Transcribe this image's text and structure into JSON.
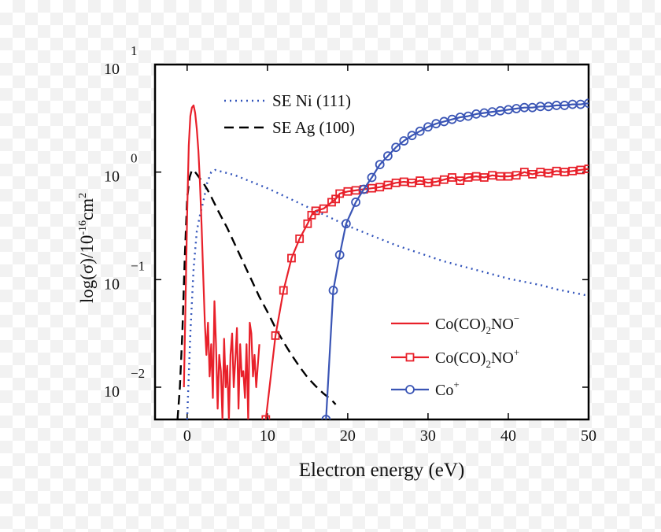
{
  "chart_data": {
    "type": "line",
    "xlabel": "Electron energy (eV)",
    "ylabel": "log(σ)/10",
    "ylabel_sup": "-16",
    "ylabel_unit": "cm",
    "ylabel_unit_sup": "2",
    "xlim": [
      -4,
      50
    ],
    "ylim": [
      -2.3,
      1.0
    ],
    "x_ticks": [
      {
        "value": 0,
        "label": "0"
      },
      {
        "value": 10,
        "label": "10"
      },
      {
        "value": 20,
        "label": "20"
      },
      {
        "value": 30,
        "label": "30"
      },
      {
        "value": 40,
        "label": "40"
      },
      {
        "value": 50,
        "label": "50"
      }
    ],
    "y_ticks": [
      {
        "value": 1,
        "base": "10",
        "exp": "1"
      },
      {
        "value": 0,
        "base": "10",
        "exp": "0"
      },
      {
        "value": -1,
        "base": "10",
        "exp": "−1"
      },
      {
        "value": -2,
        "base": "10",
        "exp": "−2"
      }
    ],
    "series": [
      {
        "name": "SE Ni (111)",
        "color": "#3355bb",
        "dash": "2,5",
        "marker": "none",
        "x": [
          0,
          0.4,
          0.8,
          1.2,
          1.6,
          2,
          2.5,
          3,
          3.5,
          4,
          5,
          6,
          7,
          8,
          9,
          10,
          12,
          14,
          16,
          18,
          20,
          22,
          24,
          26,
          28,
          30,
          32,
          34,
          36,
          38,
          40,
          42,
          44,
          46,
          48,
          50
        ],
        "y": [
          -2.3,
          -1.5,
          -0.9,
          -0.55,
          -0.4,
          -0.28,
          -0.1,
          0.0,
          0.02,
          0.01,
          -0.01,
          -0.03,
          -0.06,
          -0.09,
          -0.12,
          -0.15,
          -0.22,
          -0.29,
          -0.36,
          -0.43,
          -0.5,
          -0.56,
          -0.62,
          -0.68,
          -0.73,
          -0.78,
          -0.83,
          -0.87,
          -0.91,
          -0.95,
          -0.99,
          -1.02,
          -1.05,
          -1.09,
          -1.12,
          -1.15
        ]
      },
      {
        "name": "SE Ag (100)",
        "color": "#000000",
        "dash": "12,7",
        "marker": "none",
        "x": [
          -1.2,
          -0.9,
          -0.6,
          -0.3,
          0,
          0.3,
          0.6,
          0.9,
          1.2,
          1.5,
          2,
          2.5,
          3,
          4,
          5,
          6,
          7,
          8,
          9,
          10,
          11,
          12,
          13,
          14,
          15,
          16,
          17,
          17.5,
          18,
          18.5
        ],
        "y": [
          -2.3,
          -2.0,
          -1.5,
          -0.8,
          -0.25,
          -0.05,
          0.02,
          0.01,
          -0.02,
          -0.05,
          -0.1,
          -0.16,
          -0.23,
          -0.38,
          -0.52,
          -0.68,
          -0.84,
          -1.0,
          -1.16,
          -1.3,
          -1.45,
          -1.58,
          -1.7,
          -1.81,
          -1.91,
          -1.99,
          -2.06,
          -2.09,
          -2.12,
          -2.16
        ]
      },
      {
        "name": "Co(CO)",
        "legend_sub": "2",
        "legend_tail": "NO",
        "legend_sup": "−",
        "color": "#e8202a",
        "dash": "",
        "marker": "none",
        "x": [
          -0.4,
          -0.2,
          0,
          0.2,
          0.4,
          0.6,
          0.8,
          1.0,
          1.2,
          1.4,
          1.6,
          1.8,
          2.0,
          2.2,
          2.4,
          2.6,
          2.8,
          3.0,
          3.2,
          3.4,
          3.6,
          3.8,
          4.0,
          4.2,
          4.4,
          4.6,
          4.8,
          5.0,
          5.2,
          5.4,
          5.6,
          5.8,
          6.0,
          6.2,
          6.4,
          6.6,
          6.8,
          7.0,
          7.2,
          7.4,
          7.6,
          7.8,
          8.0,
          8.2,
          8.4,
          8.6,
          8.8,
          9.0
        ],
        "y": [
          -2.0,
          -1.2,
          -0.4,
          0.25,
          0.52,
          0.6,
          0.62,
          0.55,
          0.4,
          0.2,
          -0.1,
          -0.5,
          -0.95,
          -1.4,
          -1.7,
          -1.4,
          -1.9,
          -1.6,
          -2.1,
          -1.2,
          -1.6,
          -2.2,
          -1.7,
          -1.85,
          -2.3,
          -1.55,
          -2.0,
          -1.8,
          -2.3,
          -1.7,
          -1.5,
          -2.0,
          -1.75,
          -1.45,
          -2.2,
          -1.6,
          -1.9,
          -1.85,
          -2.1,
          -1.6,
          -2.3,
          -1.4,
          -1.5,
          -1.9,
          -1.7,
          -2.0,
          -1.8,
          -1.6
        ]
      },
      {
        "name": "Co(CO)",
        "legend_sub": "2",
        "legend_tail": "NO",
        "legend_sup": "+",
        "color": "#e8202a",
        "dash": "",
        "marker": "square",
        "x": [
          9.8,
          11,
          12,
          13,
          14,
          15,
          15.5,
          16,
          17,
          18,
          18.5,
          19,
          20,
          21,
          22,
          23,
          24,
          25,
          26,
          27,
          28,
          29,
          30,
          31,
          32,
          33,
          34,
          35,
          36,
          37,
          38,
          39,
          40,
          41,
          42,
          43,
          44,
          45,
          46,
          47,
          48,
          49,
          50
        ],
        "y": [
          -2.3,
          -1.52,
          -1.1,
          -0.8,
          -0.62,
          -0.48,
          -0.4,
          -0.36,
          -0.34,
          -0.28,
          -0.25,
          -0.2,
          -0.18,
          -0.17,
          -0.16,
          -0.15,
          -0.14,
          -0.12,
          -0.1,
          -0.09,
          -0.1,
          -0.08,
          -0.1,
          -0.09,
          -0.07,
          -0.05,
          -0.08,
          -0.05,
          -0.04,
          -0.05,
          -0.03,
          -0.04,
          -0.04,
          -0.03,
          0.0,
          -0.02,
          0.0,
          -0.01,
          0.01,
          0.0,
          0.01,
          0.02,
          0.03
        ]
      },
      {
        "name": "Co",
        "legend_sub": "",
        "legend_tail": "",
        "legend_sup": "+",
        "color": "#3a55b5",
        "dash": "",
        "marker": "circle",
        "x": [
          17.3,
          18.2,
          19,
          19.8,
          21,
          22,
          23,
          24,
          25,
          26,
          27,
          28,
          29,
          30,
          31,
          32,
          33,
          34,
          35,
          36,
          37,
          38,
          39,
          40,
          41,
          42,
          43,
          44,
          45,
          46,
          47,
          48,
          49,
          50
        ],
        "y": [
          -2.3,
          -1.1,
          -0.77,
          -0.48,
          -0.28,
          -0.16,
          -0.05,
          0.07,
          0.15,
          0.23,
          0.29,
          0.34,
          0.38,
          0.42,
          0.45,
          0.47,
          0.49,
          0.51,
          0.52,
          0.54,
          0.55,
          0.56,
          0.57,
          0.58,
          0.59,
          0.6,
          0.6,
          0.61,
          0.61,
          0.62,
          0.62,
          0.63,
          0.63,
          0.64
        ]
      }
    ]
  }
}
